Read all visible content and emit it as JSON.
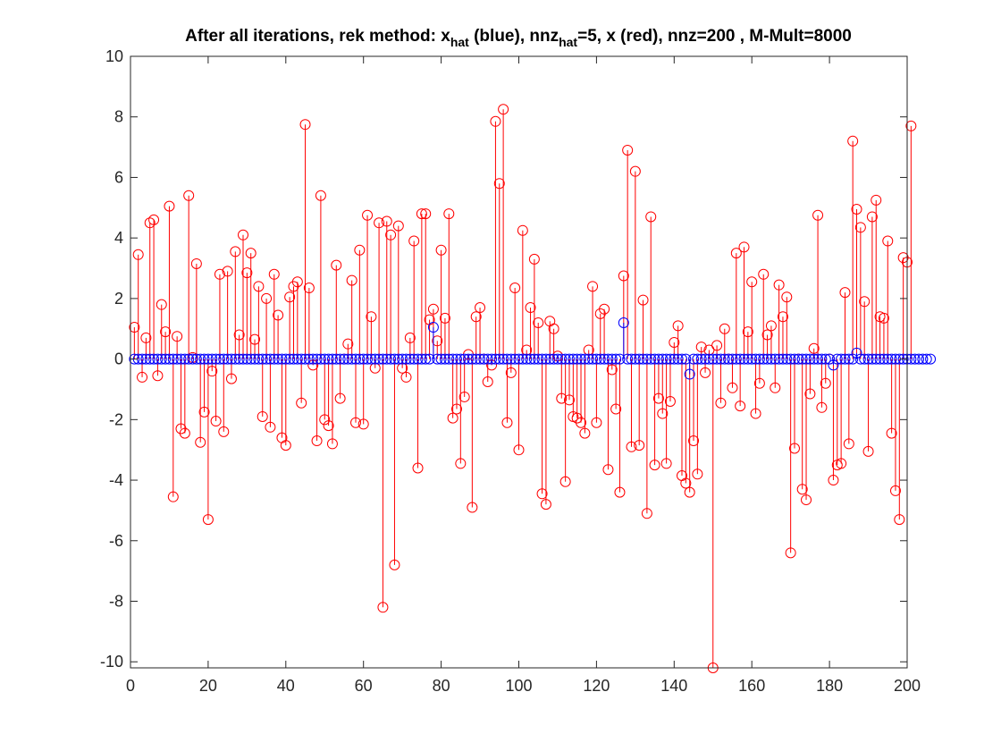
{
  "chart_data": {
    "type": "stem",
    "title": {
      "part1": "After all iterations, rek method: x",
      "sub1": "hat",
      "part2": " (blue), nnz",
      "sub2": "hat",
      "part3": "=5, x (red), nnz=200 , M-Mult=8000"
    },
    "xlim": [
      0,
      200
    ],
    "ylim": [
      -10.2,
      10
    ],
    "xticks": [
      0,
      20,
      40,
      60,
      80,
      100,
      120,
      140,
      160,
      180,
      200
    ],
    "yticks": [
      -10,
      -8,
      -6,
      -4,
      -2,
      0,
      2,
      4,
      6,
      8,
      10
    ],
    "grid": false,
    "series": [
      {
        "color": "#ff0000",
        "marker": "circle",
        "x_start": 1,
        "values": [
          1.05,
          3.45,
          -0.6,
          0.7,
          4.5,
          4.6,
          -0.55,
          1.8,
          0.9,
          5.05,
          -4.55,
          0.75,
          -2.3,
          -2.45,
          5.4,
          0.05,
          3.15,
          -2.75,
          -1.75,
          -5.3,
          -0.4,
          -2.05,
          2.8,
          -2.4,
          2.9,
          -0.65,
          3.55,
          0.8,
          4.1,
          2.85,
          3.5,
          0.65,
          2.4,
          -1.9,
          2.0,
          -2.25,
          2.8,
          1.45,
          -2.6,
          -2.85,
          2.05,
          2.4,
          2.55,
          -1.45,
          7.75,
          2.35,
          -0.2,
          -2.7,
          5.4,
          -2.0,
          -2.2,
          -2.8,
          3.1,
          -1.3,
          0.0,
          0.5,
          2.6,
          -2.1,
          3.6,
          -2.15,
          4.75,
          1.4,
          -0.3,
          4.5,
          -8.2,
          4.55,
          4.1,
          -6.8,
          4.4,
          -0.3,
          -0.6,
          0.7,
          3.9,
          -3.6,
          4.8,
          4.8,
          1.3,
          1.65,
          0.6,
          3.6,
          1.35,
          4.8,
          -1.95,
          -1.65,
          -3.45,
          -1.25,
          0.15,
          -4.9,
          1.4,
          1.7,
          0.0,
          -0.75,
          -0.2,
          7.85,
          5.8,
          8.25,
          -2.1,
          -0.45,
          2.35,
          -3.0,
          4.25,
          0.3,
          1.7,
          3.3,
          1.2,
          -4.45,
          -4.8,
          1.25,
          1.0,
          0.1,
          -1.3,
          -4.05,
          -1.35,
          -1.9,
          -1.95,
          -2.1,
          -2.45,
          0.3,
          2.4,
          -2.1,
          1.5,
          1.65,
          -3.65,
          -0.35,
          -1.65,
          -4.4,
          2.75,
          6.9,
          -2.9,
          6.2,
          -2.85,
          1.95,
          -5.1,
          4.7,
          -3.5,
          -1.3,
          -1.8,
          -3.45,
          -1.4,
          0.55,
          1.1,
          -3.85,
          -4.1,
          -4.4,
          -2.7,
          -3.8,
          0.4,
          -0.45,
          0.3,
          -10.2,
          0.45,
          -1.45,
          1.0,
          0.0,
          -0.95,
          3.5,
          -1.55,
          3.7,
          0.9,
          2.55,
          -1.8,
          -0.8,
          2.8,
          0.8,
          1.1,
          -0.95,
          2.45,
          1.4,
          2.05,
          -6.4,
          -2.95,
          0.0,
          -4.3,
          -4.65,
          -1.15,
          0.35,
          4.75,
          -1.6,
          -0.8,
          0.0,
          -4.0,
          -3.5,
          -3.45,
          2.2,
          -2.8,
          7.2,
          4.95,
          4.35,
          1.9,
          -3.05,
          4.7,
          5.25,
          1.4,
          1.35,
          3.9,
          -2.45,
          -4.35,
          -5.3,
          3.35,
          3.2,
          7.7
        ]
      },
      {
        "color": "#0000ff",
        "marker": "circle",
        "x_start": 1,
        "values": [
          0,
          0,
          0,
          0,
          0,
          0,
          0,
          0,
          0,
          0,
          0,
          0,
          0,
          0,
          0,
          0,
          0,
          0,
          0,
          0,
          0,
          0,
          0,
          0,
          0,
          0,
          0,
          0,
          0,
          0,
          0,
          0,
          0,
          0,
          0,
          0,
          0,
          0,
          0,
          0,
          0,
          0,
          0,
          0,
          0,
          0,
          0,
          0,
          0,
          0,
          0,
          0,
          0,
          0,
          0,
          0,
          0,
          0,
          0,
          0,
          0,
          0,
          0,
          0,
          0,
          0,
          0,
          0,
          0,
          0,
          0,
          0,
          0,
          0,
          0,
          0,
          0,
          1.05,
          0,
          0,
          0,
          0,
          0,
          0,
          0,
          0,
          0,
          0,
          0,
          0,
          0,
          0,
          0,
          0,
          0,
          0,
          0,
          0,
          0,
          0,
          0,
          0,
          0,
          0,
          0,
          0,
          0,
          0,
          0,
          0,
          0,
          0,
          0,
          0,
          0,
          0,
          0,
          0,
          0,
          0,
          0,
          0,
          0,
          0,
          0,
          0,
          1.2,
          0,
          0,
          0,
          0,
          0,
          0,
          0,
          0,
          0,
          0,
          0,
          0,
          0,
          0,
          0,
          0,
          -0.5,
          0,
          0,
          0,
          0,
          0,
          0,
          0,
          0,
          0,
          0,
          0,
          0,
          0,
          0,
          0,
          0,
          0,
          0,
          0,
          0,
          0,
          0,
          0,
          0,
          0,
          0,
          0,
          0,
          0,
          0,
          0,
          0,
          0,
          0,
          0,
          0,
          -0.2,
          0,
          0,
          0,
          0,
          0,
          0.2,
          0,
          0,
          0,
          0,
          0,
          0,
          0,
          0,
          0,
          0,
          0,
          0,
          0,
          0,
          0,
          0,
          0,
          0,
          0
        ]
      }
    ]
  }
}
